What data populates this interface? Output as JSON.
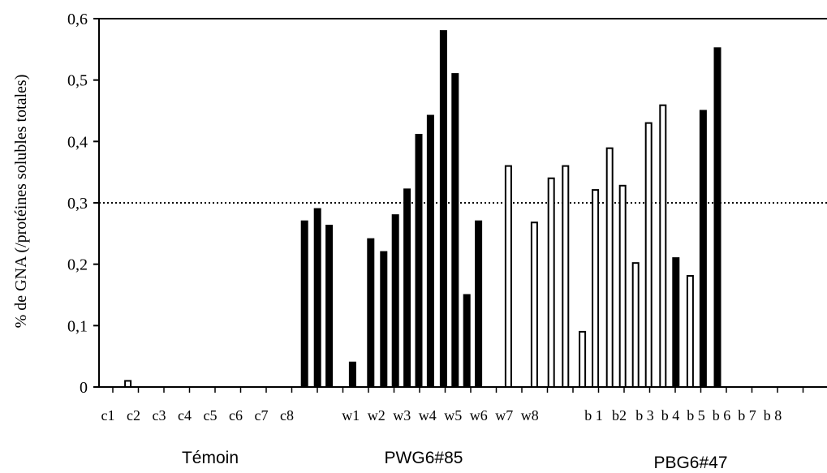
{
  "chart_data": {
    "type": "bar",
    "ylabel": "% de  GNA  (/protéines solubles totales)",
    "ylim": [
      0,
      0.6
    ],
    "yticks": [
      0,
      0.1,
      0.2,
      0.3,
      0.4,
      0.5,
      0.6
    ],
    "ytick_labels": [
      "0",
      "0,1",
      "0,2",
      "0,3",
      "0,4",
      "0,5",
      "0,6"
    ],
    "reference_line": 0.3,
    "grid": false,
    "category_labels": [
      "c1",
      "c2",
      "c3",
      "c4",
      "c5",
      "c6",
      "c7",
      "c8",
      "w1",
      "w2",
      "w3",
      "w4",
      "w5",
      "w6",
      "w7",
      "w8",
      "b 1",
      "b2",
      "b 3",
      "b 4",
      "b 5",
      "b 6",
      "b 7",
      "b 8"
    ],
    "groups": [
      {
        "name": "Témoin"
      },
      {
        "name": "PWG6#85"
      },
      {
        "name": "PBG6#47"
      }
    ],
    "bars": [
      {
        "x": 2.3,
        "value": 0.01,
        "fill": "white"
      },
      {
        "x": 9.1,
        "value": 0.27,
        "fill": "black"
      },
      {
        "x": 9.6,
        "value": 0.29,
        "fill": "black"
      },
      {
        "x": 10.05,
        "value": 0.263,
        "fill": "black"
      },
      {
        "x": 10.95,
        "value": 0.04,
        "fill": "black"
      },
      {
        "x": 11.65,
        "value": 0.241,
        "fill": "black"
      },
      {
        "x": 12.15,
        "value": 0.22,
        "fill": "black"
      },
      {
        "x": 12.6,
        "value": 0.28,
        "fill": "black"
      },
      {
        "x": 13.05,
        "value": 0.322,
        "fill": "black"
      },
      {
        "x": 13.5,
        "value": 0.411,
        "fill": "black"
      },
      {
        "x": 13.95,
        "value": 0.442,
        "fill": "black"
      },
      {
        "x": 14.45,
        "value": 0.58,
        "fill": "black"
      },
      {
        "x": 14.9,
        "value": 0.51,
        "fill": "black"
      },
      {
        "x": 15.35,
        "value": 0.15,
        "fill": "black"
      },
      {
        "x": 15.8,
        "value": 0.27,
        "fill": "black"
      },
      {
        "x": 16.95,
        "value": 0.36,
        "fill": "white"
      },
      {
        "x": 17.95,
        "value": 0.268,
        "fill": "white"
      },
      {
        "x": 18.6,
        "value": 0.34,
        "fill": "white"
      },
      {
        "x": 19.15,
        "value": 0.36,
        "fill": "white"
      },
      {
        "x": 19.8,
        "value": 0.09,
        "fill": "white"
      },
      {
        "x": 20.3,
        "value": 0.321,
        "fill": "white"
      },
      {
        "x": 20.85,
        "value": 0.389,
        "fill": "white"
      },
      {
        "x": 21.35,
        "value": 0.328,
        "fill": "white"
      },
      {
        "x": 21.85,
        "value": 0.202,
        "fill": "white"
      },
      {
        "x": 22.35,
        "value": 0.43,
        "fill": "white"
      },
      {
        "x": 22.9,
        "value": 0.459,
        "fill": "white"
      },
      {
        "x": 23.4,
        "value": 0.21,
        "fill": "black"
      },
      {
        "x": 23.95,
        "value": 0.181,
        "fill": "white"
      },
      {
        "x": 24.45,
        "value": 0.45,
        "fill": "black"
      },
      {
        "x": 25.0,
        "value": 0.552,
        "fill": "black"
      }
    ]
  }
}
